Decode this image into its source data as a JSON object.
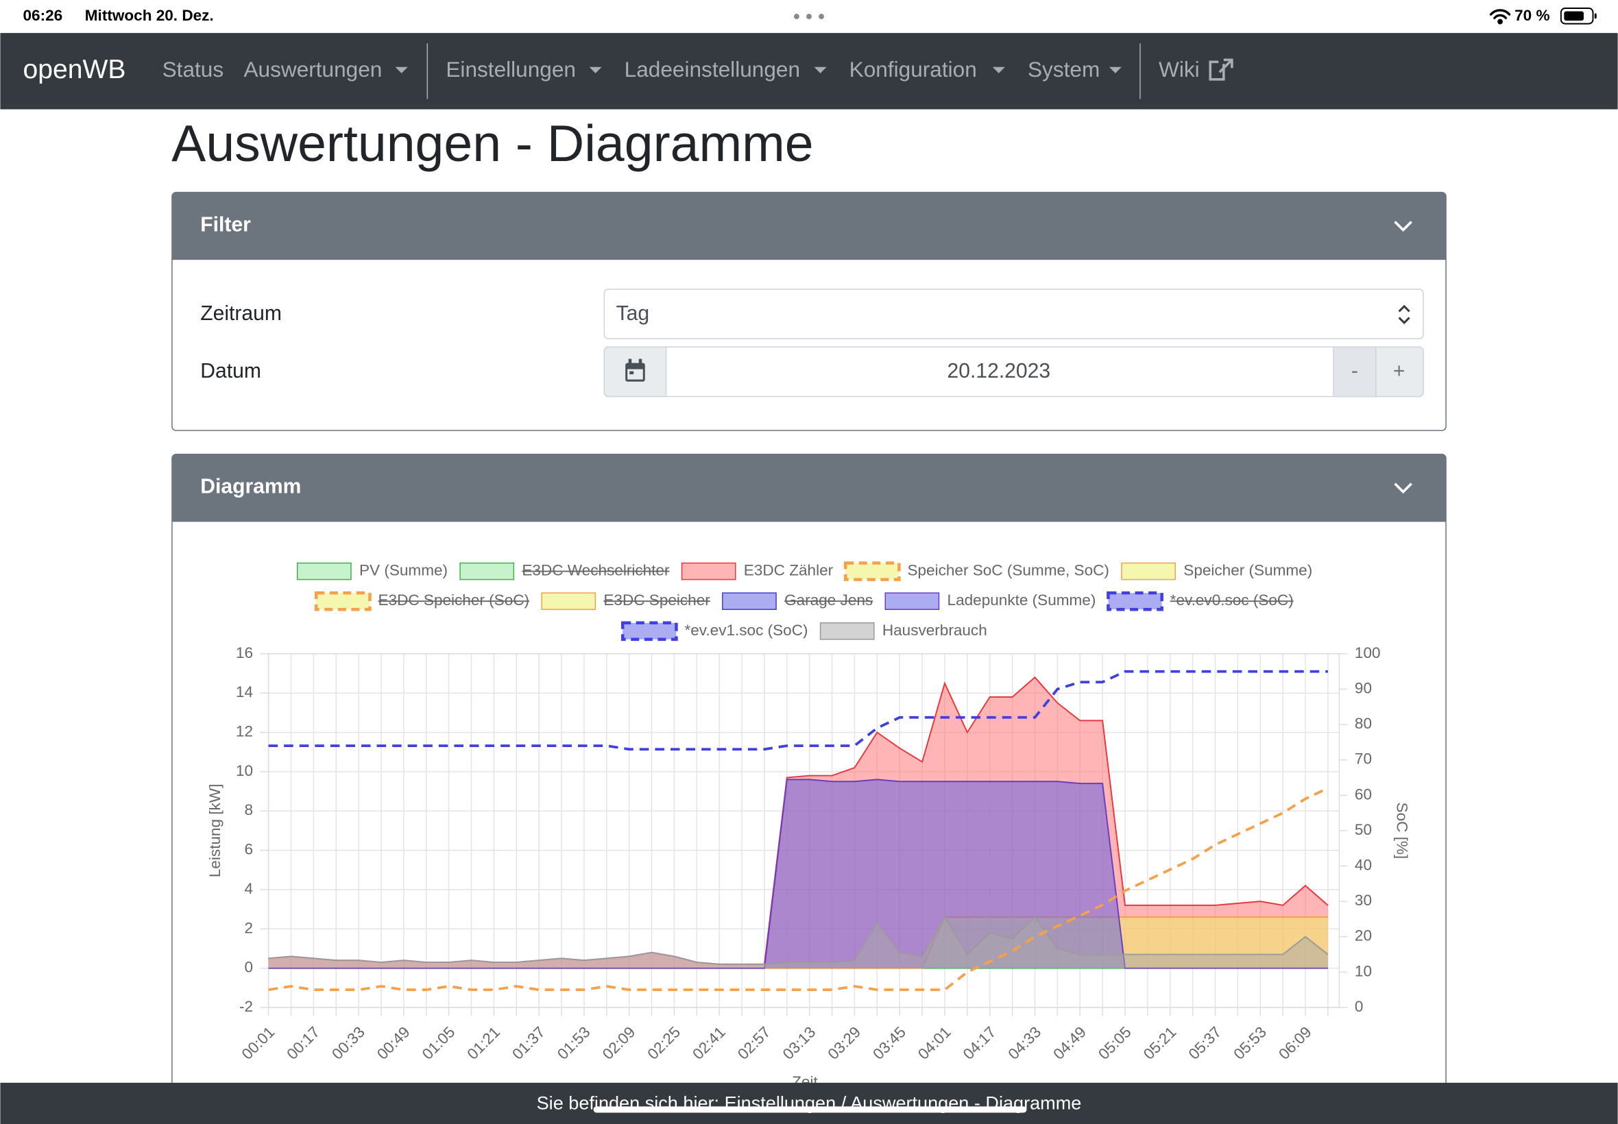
{
  "status_bar": {
    "time": "06:26",
    "date": "Mittwoch 20. Dez.",
    "battery": "70 %"
  },
  "nav": {
    "brand": "openWB",
    "items": [
      "Status",
      "Auswertungen",
      "Einstellungen",
      "Ladeeinstellungen",
      "Konfiguration",
      "System",
      "Wiki"
    ]
  },
  "page_title": "Auswertungen - Diagramme",
  "filter": {
    "title": "Filter",
    "period_label": "Zeitraum",
    "period_value": "Tag",
    "date_label": "Datum",
    "date_value": "20.12.2023",
    "minus": "-",
    "plus": "+"
  },
  "diagram_card": {
    "title": "Diagramm"
  },
  "breadcrumb": "Sie befinden sich hier: Einstellungen / Auswertungen - Diagramme",
  "chart_data": {
    "type": "area",
    "y_label": "Leistung [kW]",
    "y2_label": "SoC [%]",
    "x_label": "Zeit",
    "x": [
      "00:01",
      null,
      "00:17",
      null,
      "00:33",
      null,
      "00:49",
      null,
      "01:05",
      null,
      "01:21",
      null,
      "01:37",
      null,
      "01:53",
      null,
      "02:09",
      null,
      "02:25",
      null,
      "02:41",
      null,
      "02:57",
      null,
      "03:13",
      null,
      "03:29",
      null,
      "03:45",
      null,
      "04:01",
      null,
      "04:17",
      null,
      "04:33",
      null,
      "04:49",
      null,
      "05:05",
      null,
      "05:21",
      null,
      "05:37",
      null,
      "05:53",
      null,
      "06:09",
      null
    ],
    "ylim": [
      -2,
      16
    ],
    "yticks": [
      -2,
      0,
      2,
      4,
      6,
      8,
      10,
      12,
      14,
      16
    ],
    "y2lim": [
      0,
      100
    ],
    "y2ticks": [
      0,
      10,
      20,
      30,
      40,
      50,
      60,
      70,
      80,
      90,
      100
    ],
    "grid": true,
    "series": [
      {
        "name": "PV (Summe)",
        "color": "#3cb44b",
        "fill": "#8ee89a",
        "values": [
          0,
          0,
          0,
          0,
          0,
          0,
          0,
          0,
          0,
          0,
          0,
          0,
          0,
          0,
          0,
          0,
          0,
          0,
          0,
          0,
          0,
          0,
          0,
          0,
          0,
          0,
          0,
          0,
          0,
          0,
          0,
          0,
          0,
          0,
          0,
          0,
          0,
          0,
          0,
          0,
          0,
          0,
          0,
          0,
          0,
          0,
          0,
          0
        ]
      },
      {
        "name": "E3DC Wechselrichter",
        "color": "#3cb44b",
        "fill": "#8ee89a",
        "hidden": true
      },
      {
        "name": "E3DC Zähler",
        "color": "#e8383d",
        "fill": "#ff6b6b",
        "values": [
          0.5,
          0.6,
          0.5,
          0.4,
          0.4,
          0.3,
          0.4,
          0.3,
          0.3,
          0.4,
          0.3,
          0.3,
          0.4,
          0.5,
          0.4,
          0.5,
          0.6,
          0.8,
          0.6,
          0.3,
          0.2,
          0.2,
          0.2,
          9.7,
          9.8,
          9.8,
          10.2,
          12.0,
          11.2,
          10.5,
          14.5,
          12.0,
          13.8,
          13.8,
          14.8,
          13.5,
          12.6,
          12.6,
          3.2,
          3.2,
          3.2,
          3.2,
          3.2,
          3.3,
          3.4,
          3.2,
          4.2,
          3.2
        ]
      },
      {
        "name": "Speicher SoC (Summe, SoC)",
        "color": "#f5a04b",
        "fill": "#eef060",
        "dash": true,
        "axis": "y2",
        "values": [
          5,
          6,
          5,
          5,
          5,
          6,
          5,
          5,
          6,
          5,
          5,
          6,
          5,
          5,
          5,
          6,
          5,
          5,
          5,
          5,
          5,
          5,
          5,
          5,
          5,
          5,
          6,
          5,
          5,
          5,
          5,
          10,
          13,
          16,
          20,
          23,
          26,
          29,
          33,
          36,
          39,
          42,
          46,
          49,
          52,
          55,
          59,
          62
        ]
      },
      {
        "name": "Speicher (Summe)",
        "color": "#f5a04b",
        "fill": "#eef060",
        "values": [
          0,
          0,
          0,
          0,
          0,
          0,
          0,
          0,
          0,
          0,
          0,
          0,
          0,
          0,
          0,
          0,
          0,
          0,
          0,
          0,
          0,
          0,
          0,
          0,
          0,
          0,
          0,
          0,
          0,
          0,
          2.6,
          2.6,
          2.6,
          2.6,
          2.6,
          2.6,
          2.6,
          2.6,
          2.6,
          2.6,
          2.6,
          2.6,
          2.6,
          2.6,
          2.6,
          2.6,
          2.6,
          2.6
        ]
      },
      {
        "name": "E3DC Speicher (SoC)",
        "color": "#f5a04b",
        "fill": "#eef060",
        "dash": true,
        "hidden": true
      },
      {
        "name": "E3DC Speicher",
        "color": "#f5a04b",
        "fill": "#eef060",
        "hidden": true
      },
      {
        "name": "Garage Jens",
        "color": "#4040d0",
        "fill": "#5a5ae6",
        "hidden": true
      },
      {
        "name": "Ladepunkte (Summe)",
        "color": "#6a3cc0",
        "fill": "#5a5ae6",
        "values": [
          0,
          0,
          0,
          0,
          0,
          0,
          0,
          0,
          0,
          0,
          0,
          0,
          0,
          0,
          0,
          0,
          0,
          0,
          0,
          0,
          0,
          0,
          0,
          9.6,
          9.6,
          9.5,
          9.5,
          9.6,
          9.5,
          9.5,
          9.5,
          9.5,
          9.5,
          9.5,
          9.5,
          9.5,
          9.4,
          9.4,
          0,
          0,
          0,
          0,
          0,
          0,
          0,
          0,
          0,
          0
        ]
      },
      {
        "name": "*ev.ev0.soc (SoC)",
        "color": "#4040e0",
        "fill": "#5a5ae6",
        "dash": true,
        "hidden": true
      },
      {
        "name": "*ev.ev1.soc (SoC)",
        "color": "#4040e0",
        "fill": "#5a5ae6",
        "dash": true,
        "axis": "y2",
        "values": [
          74,
          74,
          74,
          74,
          74,
          74,
          74,
          74,
          74,
          74,
          74,
          74,
          74,
          74,
          74,
          74,
          73,
          73,
          73,
          73,
          73,
          73,
          73,
          74,
          74,
          74,
          74,
          79,
          82,
          82,
          82,
          82,
          82,
          82,
          82,
          90,
          92,
          92,
          95,
          95,
          95,
          95,
          95,
          95,
          95,
          95,
          95,
          95
        ]
      },
      {
        "name": "Hausverbrauch",
        "color": "#9a9a9a",
        "fill": "#a8a8a8",
        "values": [
          0.5,
          0.6,
          0.5,
          0.4,
          0.4,
          0.3,
          0.4,
          0.3,
          0.3,
          0.4,
          0.3,
          0.3,
          0.4,
          0.5,
          0.4,
          0.5,
          0.6,
          0.8,
          0.6,
          0.3,
          0.2,
          0.2,
          0.2,
          0.3,
          0.3,
          0.3,
          0.4,
          2.3,
          0.8,
          0.6,
          2.6,
          0.7,
          1.8,
          1.5,
          2.6,
          1.0,
          0.7,
          0.7,
          0.7,
          0.7,
          0.7,
          0.7,
          0.7,
          0.7,
          0.7,
          0.7,
          1.6,
          0.7
        ]
      }
    ]
  }
}
